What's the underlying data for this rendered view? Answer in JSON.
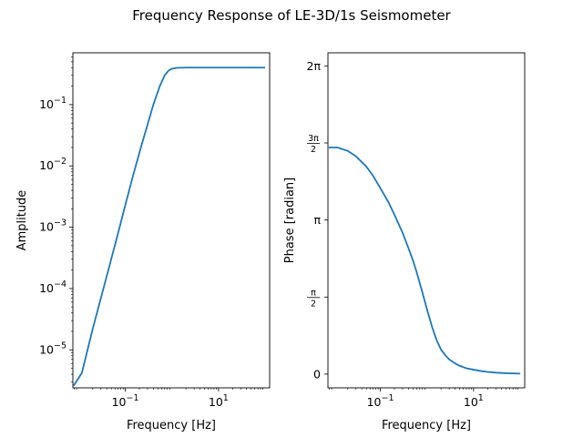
{
  "chart_data": {
    "type": "line",
    "title": "Frequency Response of LE-3D/1s Seismometer",
    "series_color": "#1f77b4",
    "panels": [
      {
        "name": "amplitude",
        "xlabel": "Frequency [Hz]",
        "ylabel": "Amplitude",
        "xscale": "log",
        "yscale": "log",
        "xlim": [
          0.0075,
          125
        ],
        "ylim": [
          2.4e-06,
          0.7
        ],
        "xticks": [
          {
            "v": 0.1,
            "base": "10",
            "exp": "−1"
          },
          {
            "v": 10,
            "base": "10",
            "exp": "1"
          }
        ],
        "yticks": [
          {
            "v": 1e-05,
            "base": "10",
            "exp": "−5"
          },
          {
            "v": 0.0001,
            "base": "10",
            "exp": "−4"
          },
          {
            "v": 0.001,
            "base": "10",
            "exp": "−3"
          },
          {
            "v": 0.01,
            "base": "10",
            "exp": "−2"
          },
          {
            "v": 0.1,
            "base": "10",
            "exp": "−1"
          }
        ],
        "x": [
          0.0078,
          0.0117,
          0.02,
          0.04,
          0.07,
          0.1,
          0.15,
          0.22,
          0.3,
          0.4,
          0.55,
          0.7,
          0.85,
          1.0,
          1.3,
          2.0,
          5.0,
          20.0,
          100.0
        ],
        "y": [
          2.6e-06,
          4.2e-06,
          2.2e-05,
          0.00016,
          0.0008,
          0.0023,
          0.0074,
          0.021,
          0.047,
          0.1,
          0.2,
          0.3,
          0.36,
          0.385,
          0.398,
          0.402,
          0.402,
          0.402,
          0.402
        ]
      },
      {
        "name": "phase",
        "xlabel": "Frequency [Hz]",
        "ylabel": "Phase [radian]",
        "xscale": "log",
        "yscale": "linear",
        "xlim": [
          0.0075,
          125
        ],
        "ylim": [
          -0.28,
          6.55
        ],
        "xticks": [
          {
            "v": 0.1,
            "base": "10",
            "exp": "−1"
          },
          {
            "v": 10,
            "base": "10",
            "exp": "1"
          }
        ],
        "yticks": [
          {
            "v": 0,
            "label": "0"
          },
          {
            "v": 1.5708,
            "num": "π",
            "den": "2"
          },
          {
            "v": 3.1416,
            "label": "π"
          },
          {
            "v": 4.7124,
            "num": "3π",
            "den": "2"
          },
          {
            "v": 6.2832,
            "label": "2π"
          }
        ],
        "x": [
          0.0078,
          0.012,
          0.02,
          0.03,
          0.05,
          0.07,
          0.1,
          0.15,
          0.2,
          0.3,
          0.4,
          0.5,
          0.6,
          0.8,
          1.0,
          1.3,
          1.6,
          2.0,
          2.5,
          3.0,
          4.0,
          5.0,
          7.0,
          10.0,
          15.0,
          20.0,
          30.0,
          50.0,
          100.0
        ],
        "y": [
          4.62,
          4.62,
          4.55,
          4.44,
          4.23,
          4.04,
          3.79,
          3.5,
          3.25,
          2.88,
          2.57,
          2.32,
          2.08,
          1.66,
          1.32,
          0.95,
          0.7,
          0.5,
          0.38,
          0.3,
          0.22,
          0.17,
          0.12,
          0.09,
          0.06,
          0.045,
          0.03,
          0.018,
          0.01
        ]
      }
    ]
  }
}
